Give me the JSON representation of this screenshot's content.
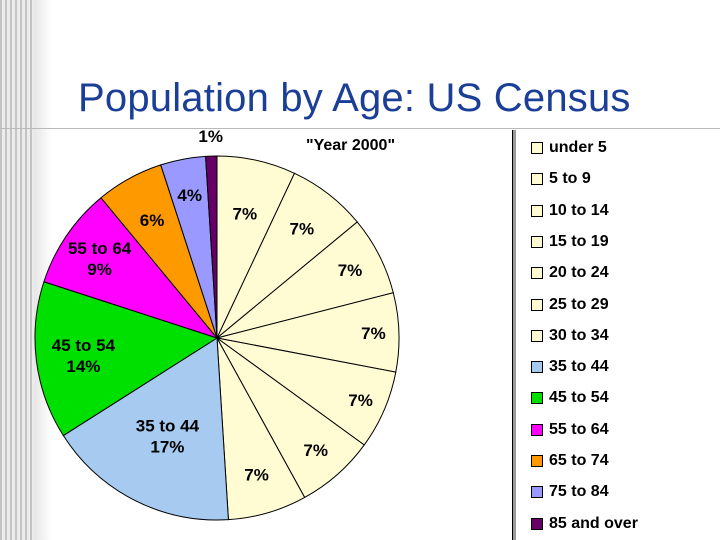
{
  "title": "Population by Age: US Census",
  "chart_data": {
    "type": "pie",
    "title": "\"Year 2000\"",
    "legend_position": "right",
    "slices": [
      {
        "label": "under 5",
        "value": 7,
        "display": "7%",
        "color": "#fffcd4"
      },
      {
        "label": "5 to 9",
        "value": 7,
        "display": "7%",
        "color": "#fffcd4"
      },
      {
        "label": "10 to 14",
        "value": 7,
        "display": "7%",
        "color": "#fffcd4"
      },
      {
        "label": "15 to 19",
        "value": 7,
        "display": "7%",
        "color": "#fffcd4"
      },
      {
        "label": "20 to 24",
        "value": 7,
        "display": "7%",
        "color": "#fffcd4"
      },
      {
        "label": "25 to 29",
        "value": 7,
        "display": "7%",
        "color": "#fffcd4"
      },
      {
        "label": "30 to 34",
        "value": 7,
        "display": "7%",
        "color": "#fffcd4"
      },
      {
        "label": "35 to 44",
        "value": 17,
        "display": "35 to 44\n17%",
        "color": "#a6caf0"
      },
      {
        "label": "45 to 54",
        "value": 14,
        "display": "45 to 54\n14%",
        "color": "#00e000"
      },
      {
        "label": "55 to 64",
        "value": 9,
        "display": "55 to 64\n9%",
        "color": "#ff00ff"
      },
      {
        "label": "65 to 74",
        "value": 6,
        "display": "6%",
        "color": "#ff9900"
      },
      {
        "label": "75 to 84",
        "value": 4,
        "display": "4%",
        "color": "#9999ff"
      },
      {
        "label": "85 and over",
        "value": 1,
        "display": "1%",
        "color": "#660066"
      }
    ]
  }
}
